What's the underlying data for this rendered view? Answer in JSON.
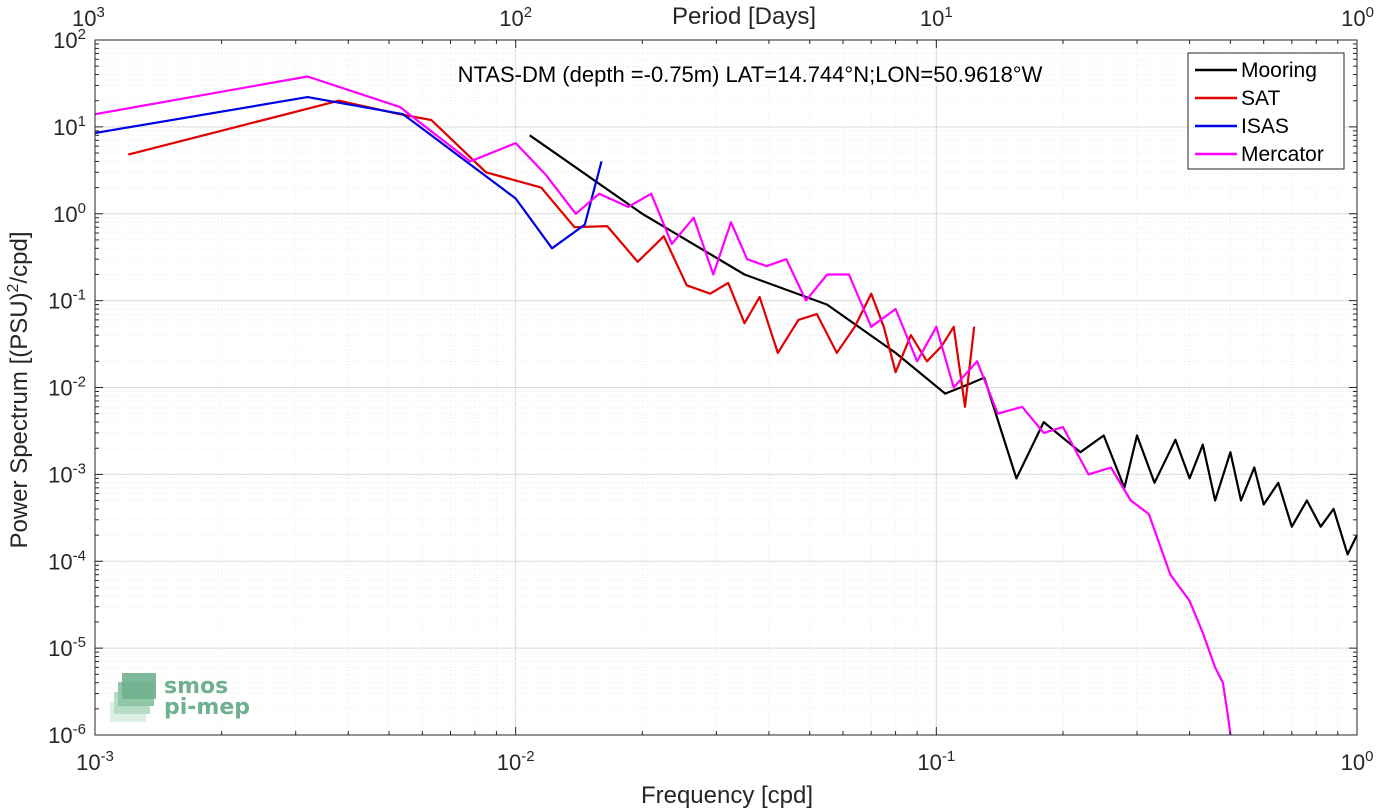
{
  "chart_data": {
    "type": "line",
    "title": "NTAS-DM (depth =-0.75m) LAT=14.744°N;LON=50.9618°W",
    "xlabel": "Frequency [cpd]",
    "ylabel": "Power Spectrum [(PSU)",
    "ylabel_sup": "2",
    "ylabel_tail": "/cpd]",
    "top_xlabel": "Period [Days]",
    "xscale": "log",
    "yscale": "log",
    "xlim": [
      0.001,
      1
    ],
    "ylim": [
      1e-06,
      100
    ],
    "grid": true,
    "legend_position": "top-right",
    "x_ticks": [
      {
        "value": 0.001,
        "base": "10",
        "exp": "-3"
      },
      {
        "value": 0.01,
        "base": "10",
        "exp": "-2"
      },
      {
        "value": 0.1,
        "base": "10",
        "exp": "-1"
      },
      {
        "value": 1,
        "base": "10",
        "exp": "0"
      }
    ],
    "top_ticks": [
      {
        "value": 0.001,
        "base": "10",
        "exp": "3"
      },
      {
        "value": 0.01,
        "base": "10",
        "exp": "2"
      },
      {
        "value": 0.1,
        "base": "10",
        "exp": "1"
      },
      {
        "value": 1,
        "base": "10",
        "exp": "0"
      }
    ],
    "y_ticks": [
      {
        "value": 100,
        "base": "10",
        "exp": "2"
      },
      {
        "value": 10,
        "base": "10",
        "exp": "1"
      },
      {
        "value": 1,
        "base": "10",
        "exp": "0"
      },
      {
        "value": 0.1,
        "base": "10",
        "exp": "-1"
      },
      {
        "value": 0.01,
        "base": "10",
        "exp": "-2"
      },
      {
        "value": 0.001,
        "base": "10",
        "exp": "-3"
      },
      {
        "value": 0.0001,
        "base": "10",
        "exp": "-4"
      },
      {
        "value": 1e-05,
        "base": "10",
        "exp": "-5"
      },
      {
        "value": 1e-06,
        "base": "10",
        "exp": "-6"
      }
    ],
    "series": [
      {
        "name": "Mooring",
        "color": "#000000",
        "x": [
          0.0108,
          0.02,
          0.035,
          0.055,
          0.08,
          0.105,
          0.12,
          0.13,
          0.155,
          0.18,
          0.22,
          0.25,
          0.28,
          0.3,
          0.33,
          0.37,
          0.4,
          0.43,
          0.46,
          0.5,
          0.53,
          0.57,
          0.6,
          0.65,
          0.7,
          0.76,
          0.82,
          0.88,
          0.95,
          1.0
        ],
        "y": [
          8,
          1.0,
          0.2,
          0.09,
          0.025,
          0.0085,
          0.011,
          0.013,
          0.0009,
          0.004,
          0.0018,
          0.0028,
          0.0007,
          0.0028,
          0.0008,
          0.0025,
          0.0009,
          0.0022,
          0.0005,
          0.0018,
          0.0005,
          0.0012,
          0.00045,
          0.0008,
          0.00025,
          0.0005,
          0.00025,
          0.0004,
          0.00012,
          0.0002
        ]
      },
      {
        "name": "SAT",
        "color": "#e00000",
        "x": [
          0.0012,
          0.0038,
          0.0053,
          0.0063,
          0.0085,
          0.0115,
          0.0138,
          0.0165,
          0.0195,
          0.0225,
          0.0255,
          0.029,
          0.032,
          0.035,
          0.038,
          0.042,
          0.047,
          0.052,
          0.058,
          0.064,
          0.07,
          0.075,
          0.08,
          0.087,
          0.095,
          0.103,
          0.11,
          0.117,
          0.123
        ],
        "y": [
          4.8,
          20,
          14,
          12,
          3.0,
          2.0,
          0.7,
          0.72,
          0.28,
          0.55,
          0.15,
          0.12,
          0.16,
          0.055,
          0.11,
          0.025,
          0.06,
          0.07,
          0.025,
          0.05,
          0.12,
          0.05,
          0.015,
          0.04,
          0.02,
          0.03,
          0.05,
          0.006,
          0.05
        ]
      },
      {
        "name": "ISAS",
        "color": "#0000e0",
        "x": [
          0.001,
          0.0032,
          0.0054,
          0.01,
          0.0122,
          0.0146,
          0.016
        ],
        "y": [
          8.5,
          22,
          14,
          1.5,
          0.4,
          0.75,
          4.0
        ]
      },
      {
        "name": "Mercator",
        "color": "#ff00ff",
        "x": [
          0.001,
          0.0032,
          0.0053,
          0.0078,
          0.01,
          0.0118,
          0.0139,
          0.0158,
          0.0185,
          0.021,
          0.0235,
          0.0265,
          0.0295,
          0.0325,
          0.0355,
          0.0395,
          0.044,
          0.049,
          0.055,
          0.062,
          0.07,
          0.08,
          0.09,
          0.1,
          0.11,
          0.125,
          0.14,
          0.16,
          0.18,
          0.2,
          0.23,
          0.26,
          0.29,
          0.32,
          0.36,
          0.4,
          0.43,
          0.46,
          0.48,
          0.495,
          0.5
        ],
        "y": [
          14,
          38,
          17,
          4,
          6.5,
          2.8,
          1.0,
          1.7,
          1.2,
          1.7,
          0.45,
          0.9,
          0.2,
          0.8,
          0.3,
          0.25,
          0.3,
          0.1,
          0.2,
          0.2,
          0.05,
          0.08,
          0.02,
          0.05,
          0.01,
          0.02,
          0.005,
          0.006,
          0.003,
          0.0035,
          0.001,
          0.0012,
          0.0005,
          0.00035,
          7e-05,
          3.5e-05,
          1.5e-05,
          6e-06,
          4e-06,
          1.5e-06,
          1e-06
        ]
      }
    ]
  },
  "logo": {
    "line1": "smos",
    "line2": "pi-mep"
  }
}
